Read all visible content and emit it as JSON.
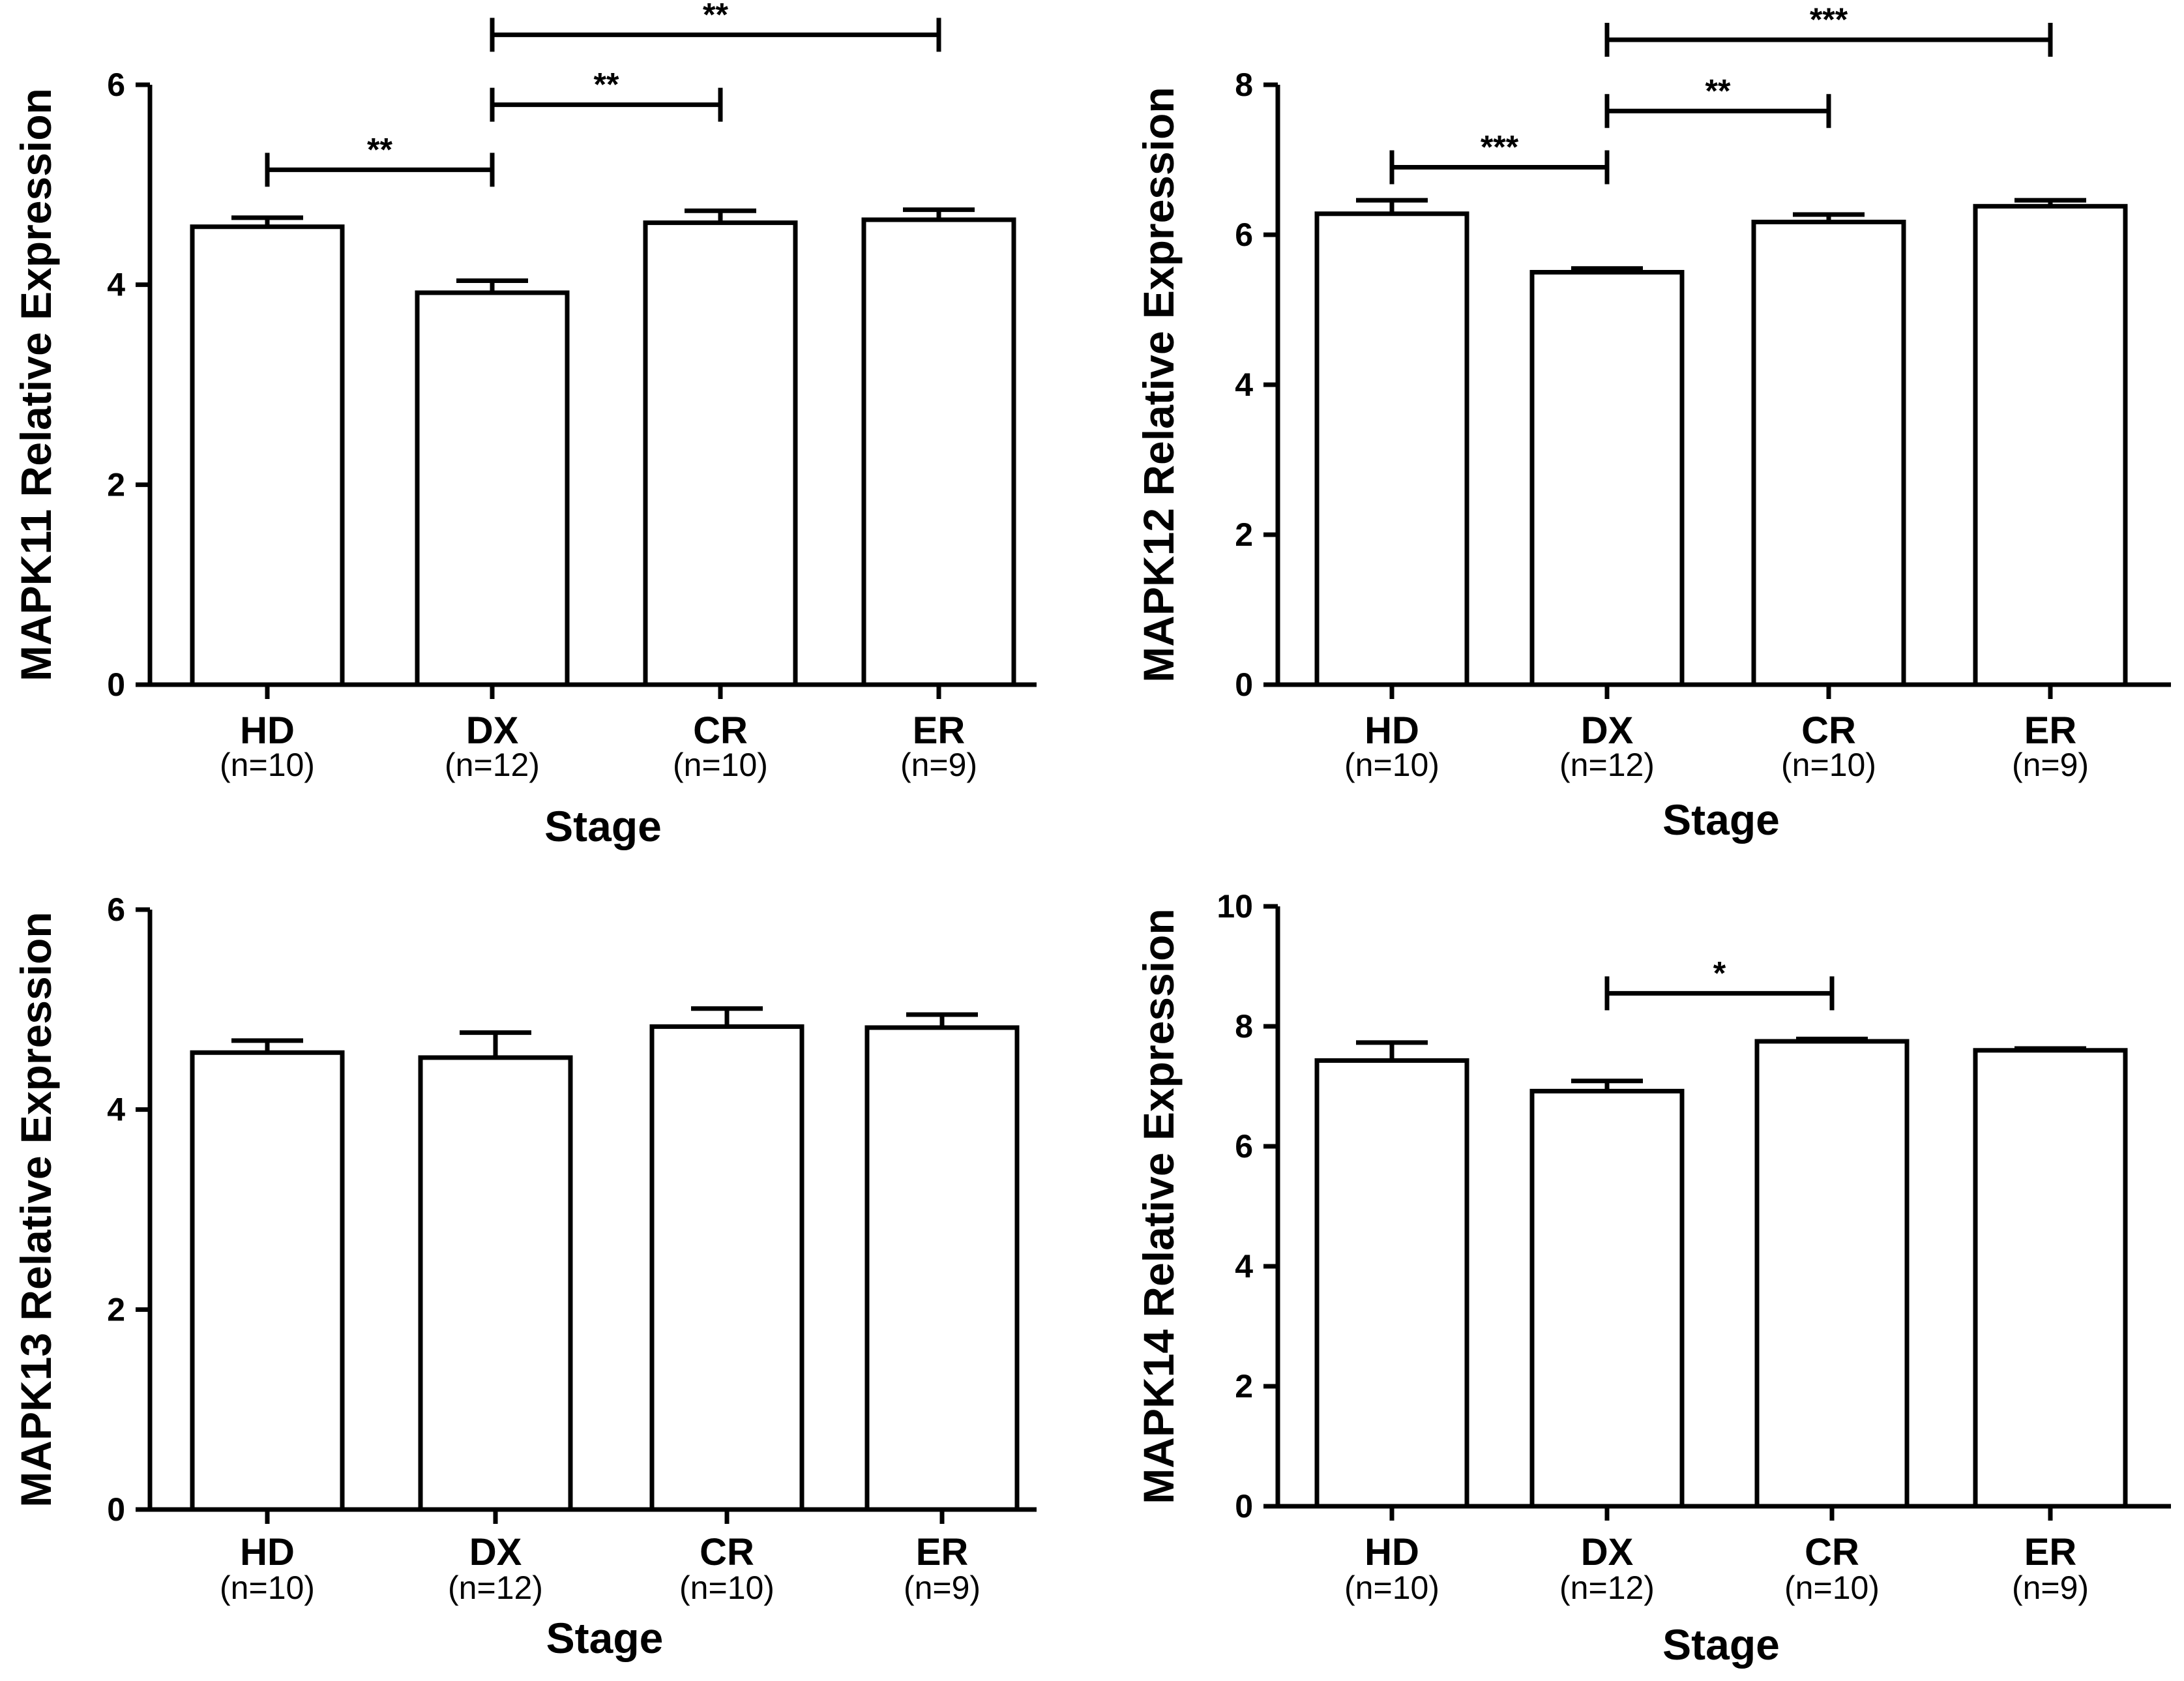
{
  "chart_data": [
    {
      "type": "bar",
      "categories": [
        "HD",
        "DX",
        "CR",
        "ER"
      ],
      "sample_sizes": [
        "(n=10)",
        "(n=12)",
        "(n=10)",
        "(n=9)"
      ],
      "values": [
        4.58,
        3.92,
        4.62,
        4.65
      ],
      "errors": [
        0.09,
        0.12,
        0.12,
        0.1
      ],
      "xlabel": "Stage",
      "ylabel": "MAPK11 Relative Expression",
      "ylim": [
        0,
        6
      ],
      "yticks": [
        0,
        2,
        4,
        6
      ],
      "significance": [
        {
          "from": 0,
          "to": 1,
          "label": "**",
          "y": 5.15
        },
        {
          "from": 1,
          "to": 2,
          "label": "**",
          "y": 5.8
        },
        {
          "from": 1,
          "to": 3,
          "label": "**",
          "y": 6.5
        }
      ]
    },
    {
      "type": "bar",
      "categories": [
        "HD",
        "DX",
        "CR",
        "ER"
      ],
      "sample_sizes": [
        "(n=10)",
        "(n=12)",
        "(n=10)",
        "(n=9)"
      ],
      "values": [
        6.28,
        5.5,
        6.17,
        6.38
      ],
      "errors": [
        0.18,
        0.05,
        0.1,
        0.08
      ],
      "xlabel": "Stage",
      "ylabel": "MAPK12 Relative Expression",
      "ylim": [
        0,
        8
      ],
      "yticks": [
        0,
        2,
        4,
        6,
        8
      ],
      "significance": [
        {
          "from": 0,
          "to": 1,
          "label": "***",
          "y": 6.9
        },
        {
          "from": 1,
          "to": 2,
          "label": "**",
          "y": 7.65
        },
        {
          "from": 1,
          "to": 3,
          "label": "***",
          "y": 8.6
        }
      ]
    },
    {
      "type": "bar",
      "categories": [
        "HD",
        "DX",
        "CR",
        "ER"
      ],
      "sample_sizes": [
        "(n=10)",
        "(n=12)",
        "(n=10)",
        "(n=9)"
      ],
      "values": [
        4.57,
        4.52,
        4.83,
        4.82
      ],
      "errors": [
        0.12,
        0.25,
        0.18,
        0.13
      ],
      "xlabel": "Stage",
      "ylabel": "MAPK13 Relative Expression",
      "ylim": [
        0,
        6
      ],
      "yticks": [
        0,
        2,
        4,
        6
      ],
      "significance": []
    },
    {
      "type": "bar",
      "categories": [
        "HD",
        "DX",
        "CR",
        "ER"
      ],
      "sample_sizes": [
        "(n=10)",
        "(n=12)",
        "(n=10)",
        "(n=9)"
      ],
      "values": [
        7.43,
        6.92,
        7.75,
        7.6
      ],
      "errors": [
        0.3,
        0.17,
        0.04,
        0.03
      ],
      "xlabel": "Stage",
      "ylabel": "MAPK14 Relative Expression",
      "ylim": [
        0,
        10
      ],
      "yticks": [
        0,
        2,
        4,
        6,
        8,
        10
      ],
      "significance": [
        {
          "from": 1,
          "to": 2,
          "label": "*",
          "y": 8.55
        }
      ]
    }
  ]
}
